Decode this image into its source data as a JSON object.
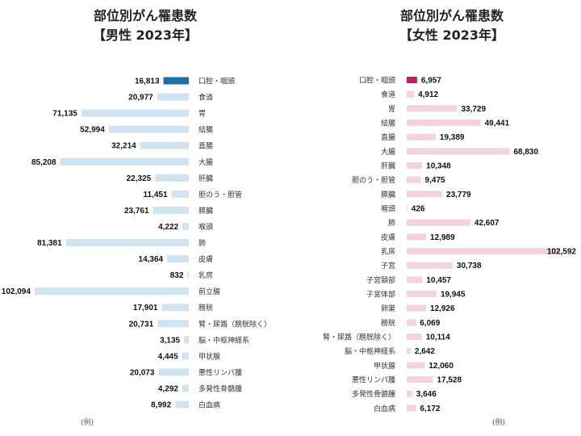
{
  "colors": {
    "male_bar": "#cfe3f0",
    "male_highlight": "#1f6fa5",
    "female_bar": "#f3d3df",
    "female_highlight": "#b5245f"
  },
  "left_panel": {
    "title_line1": "部位別がん罹患数",
    "title_line2": "【男性 2023年】",
    "footnote": "(例)"
  },
  "right_panel": {
    "title_line1": "部位別がん罹患数",
    "title_line2": "【女性 2023年】",
    "footnote": "(例)"
  },
  "chart_data": [
    {
      "type": "bar",
      "orientation": "horizontal",
      "direction": "right-to-left",
      "title": "部位別がん罹患数 【男性 2023年】",
      "highlight_index": 0,
      "categories": [
        "口腔・咽頭",
        "食道",
        "胃",
        "結腸",
        "直腸",
        "大腸",
        "肝臓",
        "胆のう・胆管",
        "膵臓",
        "喉頭",
        "肺",
        "皮膚",
        "乳房",
        "前立腺",
        "膀胱",
        "腎・尿路（膀胱除く）",
        "脳・中枢神経系",
        "甲状腺",
        "悪性リンパ腫",
        "多発性骨髄腫",
        "白血病"
      ],
      "values": [
        16813,
        20977,
        71135,
        52994,
        32214,
        85208,
        22325,
        11451,
        23761,
        4222,
        81381,
        14364,
        832,
        102094,
        17901,
        20731,
        3135,
        4445,
        20073,
        4292,
        8992
      ],
      "labels": [
        "16,813",
        "20,977",
        "71,135",
        "52,994",
        "32,214",
        "85,208",
        "22,325",
        "11,451",
        "23,761",
        "4,222",
        "81,381",
        "14,364",
        "832",
        "102,094",
        "17,901",
        "20,731",
        "3,135",
        "4,445",
        "20,073",
        "4,292",
        "8,992"
      ],
      "xlim": [
        0,
        102592
      ]
    },
    {
      "type": "bar",
      "orientation": "horizontal",
      "direction": "left-to-right",
      "title": "部位別がん罹患数 【女性 2023年】",
      "highlight_index": 0,
      "categories": [
        "口腔・咽頭",
        "食道",
        "胃",
        "結腸",
        "直腸",
        "大腸",
        "肝臓",
        "胆のう・胆管",
        "膵臓",
        "喉頭",
        "肺",
        "皮膚",
        "乳房",
        "子宮",
        "子宮頸部",
        "子宮体部",
        "卵巣",
        "膀胱",
        "腎・尿路（膀胱除く）",
        "脳・中枢神経系",
        "甲状腺",
        "悪性リンパ腫",
        "多発性骨髄腫",
        "白血病"
      ],
      "values": [
        6957,
        4912,
        33729,
        49441,
        19389,
        68830,
        10348,
        9475,
        23779,
        426,
        42607,
        12989,
        102592,
        30738,
        10457,
        19945,
        12926,
        6069,
        10114,
        2642,
        12060,
        17528,
        3646,
        6172
      ],
      "labels": [
        "6,957",
        "4,912",
        "33,729",
        "49,441",
        "19,389",
        "68,830",
        "10,348",
        "9,475",
        "23,779",
        "426",
        "42,607",
        "12,989",
        "102,592",
        "30,738",
        "10,457",
        "19,945",
        "12,926",
        "6,069",
        "10,114",
        "2,642",
        "12,060",
        "17,528",
        "3,646",
        "6,172"
      ],
      "xlim": [
        0,
        102592
      ]
    }
  ]
}
